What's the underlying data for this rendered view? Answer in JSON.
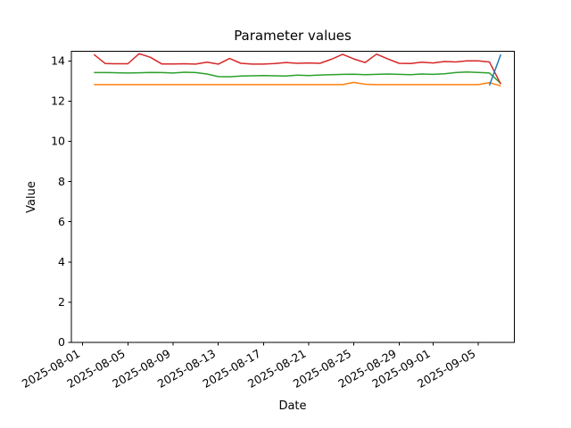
{
  "chart_data": {
    "type": "line",
    "title": "Parameter values",
    "xlabel": "Date",
    "ylabel": "Value",
    "background": "#ffffff",
    "axis_color": "#000000",
    "grid": false,
    "legend": "none",
    "line_width": 1.5,
    "ylim": [
      0,
      14.48
    ],
    "yticks": [
      0,
      2,
      4,
      6,
      8,
      10,
      12,
      14
    ],
    "x_axis": {
      "origin": "2025-08-01",
      "xlim_days": [
        -1,
        38.2
      ],
      "tick_labels": [
        "2025-08-01",
        "2025-08-05",
        "2025-08-09",
        "2025-08-13",
        "2025-08-17",
        "2025-08-21",
        "2025-08-25",
        "2025-08-29",
        "2025-09-01",
        "2025-09-05"
      ],
      "rotation_deg": 30
    },
    "dates": [
      "2025-08-02",
      "2025-08-03",
      "2025-08-04",
      "2025-08-05",
      "2025-08-06",
      "2025-08-07",
      "2025-08-08",
      "2025-08-09",
      "2025-08-10",
      "2025-08-11",
      "2025-08-12",
      "2025-08-13",
      "2025-08-14",
      "2025-08-15",
      "2025-08-16",
      "2025-08-17",
      "2025-08-18",
      "2025-08-19",
      "2025-08-20",
      "2025-08-21",
      "2025-08-22",
      "2025-08-23",
      "2025-08-24",
      "2025-08-25",
      "2025-08-26",
      "2025-08-27",
      "2025-08-28",
      "2025-08-29",
      "2025-08-30",
      "2025-08-31",
      "2025-09-01",
      "2025-09-02",
      "2025-09-03",
      "2025-09-04",
      "2025-09-05",
      "2025-09-06",
      "2025-09-07"
    ],
    "series": [
      {
        "name": "series-orange",
        "color": "#ff7f0e",
        "values": [
          12.82,
          12.82,
          12.82,
          12.82,
          12.82,
          12.82,
          12.82,
          12.82,
          12.82,
          12.82,
          12.82,
          12.82,
          12.82,
          12.82,
          12.82,
          12.82,
          12.82,
          12.82,
          12.82,
          12.82,
          12.82,
          12.82,
          12.82,
          12.93,
          12.84,
          12.82,
          12.82,
          12.82,
          12.82,
          12.82,
          12.82,
          12.82,
          12.82,
          12.82,
          12.82,
          12.92,
          12.76
        ]
      },
      {
        "name": "series-green",
        "color": "#2ca02c",
        "values": [
          13.42,
          13.42,
          13.41,
          13.4,
          13.41,
          13.43,
          13.42,
          13.4,
          13.44,
          13.42,
          13.35,
          13.22,
          13.21,
          13.25,
          13.26,
          13.27,
          13.26,
          13.25,
          13.29,
          13.27,
          13.3,
          13.32,
          13.33,
          13.34,
          13.32,
          13.33,
          13.35,
          13.33,
          13.32,
          13.35,
          13.33,
          13.36,
          13.42,
          13.45,
          13.43,
          13.4,
          12.88
        ]
      },
      {
        "name": "series-red",
        "color": "#d62728",
        "values": [
          14.32,
          13.87,
          13.86,
          13.86,
          14.36,
          14.18,
          13.85,
          13.85,
          13.86,
          13.84,
          13.94,
          13.84,
          14.12,
          13.88,
          13.84,
          13.84,
          13.87,
          13.92,
          13.88,
          13.9,
          13.88,
          14.08,
          14.33,
          14.1,
          13.92,
          14.34,
          14.1,
          13.88,
          13.87,
          13.94,
          13.9,
          13.97,
          13.95,
          14.0,
          14.0,
          13.95,
          12.85
        ]
      },
      {
        "name": "series-blue",
        "color": "#1f77b4",
        "values": [
          null,
          null,
          null,
          null,
          null,
          null,
          null,
          null,
          null,
          null,
          null,
          null,
          null,
          null,
          null,
          null,
          null,
          null,
          null,
          null,
          null,
          null,
          null,
          null,
          null,
          null,
          null,
          null,
          null,
          null,
          null,
          null,
          null,
          null,
          null,
          12.78,
          14.32
        ]
      }
    ]
  }
}
